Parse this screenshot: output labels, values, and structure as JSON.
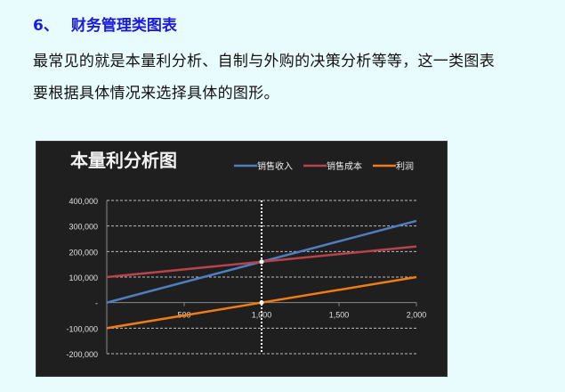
{
  "heading": {
    "number": "6、",
    "title": "财务管理类图表"
  },
  "paragraph": {
    "line1": "最常见的就是本量利分析、自制与外购的决策分析等等，这一类图表",
    "line2": "要根据具体情况来选择具体的图形。"
  },
  "chart_data": {
    "type": "line",
    "title": "本量利分析图",
    "xlabel": "",
    "ylabel": "",
    "x": [
      0,
      2000
    ],
    "xlim": [
      0,
      2000
    ],
    "ylim": [
      -200000,
      400000
    ],
    "xticks": [
      500,
      1000,
      1500,
      2000
    ],
    "xtick_labels": [
      "500",
      "1,000",
      "1,500",
      "2,000"
    ],
    "yticks": [
      400000,
      300000,
      200000,
      100000,
      0,
      -100000,
      -200000
    ],
    "ytick_labels": [
      "400,000",
      "300,000",
      "200,000",
      "100,000",
      "-",
      "-100,000",
      "-200,000"
    ],
    "grid": true,
    "legend": "top-right",
    "series": [
      {
        "name": "销售收入",
        "values": [
          0,
          320000
        ],
        "color": "#4f7ec0"
      },
      {
        "name": "销售成本",
        "values": [
          100000,
          220000
        ],
        "color": "#b8434a"
      },
      {
        "name": "利润",
        "values": [
          -100000,
          100000
        ],
        "color": "#f07c14"
      }
    ],
    "annotations": {
      "break_even_x": 1000,
      "break_even_y": 160000,
      "background": "#1f1f1f"
    }
  }
}
